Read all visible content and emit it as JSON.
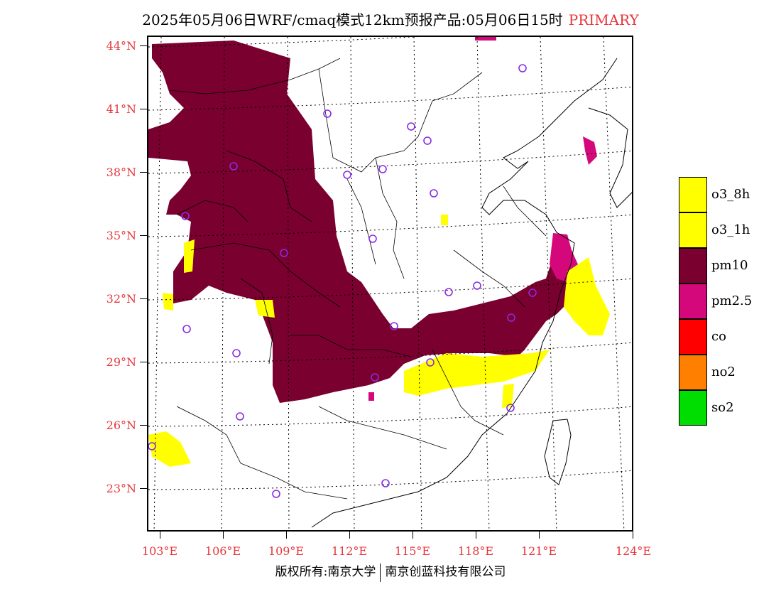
{
  "title": {
    "text": "2025年05月06日WRF/cmaq模式12km预报产品:05月06日15时",
    "tag": "PRIMARY"
  },
  "axes": {
    "lat_labels": [
      "44°N",
      "41°N",
      "38°N",
      "35°N",
      "32°N",
      "29°N",
      "26°N",
      "23°N"
    ],
    "lon_labels": [
      "103°E",
      "106°E",
      "109°E",
      "112°E",
      "115°E",
      "118°E",
      "121°E",
      "124°E"
    ]
  },
  "legend": {
    "items": [
      {
        "label": "o3_8h",
        "color": "#ffff00"
      },
      {
        "label": "o3_1h",
        "color": "#ffff00"
      },
      {
        "label": "pm10",
        "color": "#7a0030"
      },
      {
        "label": "pm2.5",
        "color": "#d4087a"
      },
      {
        "label": "co",
        "color": "#ff0000"
      },
      {
        "label": "no2",
        "color": "#ff8000"
      },
      {
        "label": "so2",
        "color": "#00dd00"
      }
    ]
  },
  "copyright": {
    "left": "版权所有:南京大学",
    "right": "南京创蓝科技有限公司"
  }
}
